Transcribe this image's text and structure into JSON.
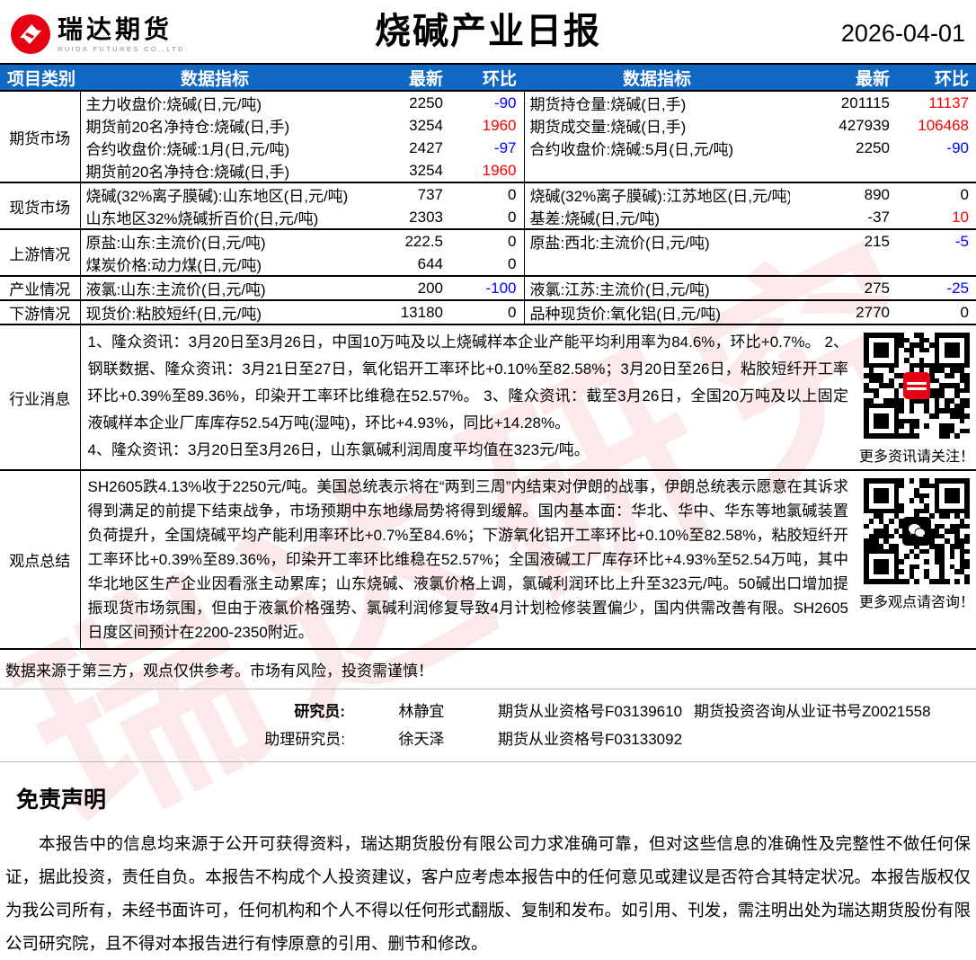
{
  "colors": {
    "header_blue": "#1167c4",
    "pos": "#ff0000",
    "neg": "#0000ff",
    "brand_red": "#e60012"
  },
  "header": {
    "brand": "瑞达期货",
    "brand_sub": "RUIDA FUTURES CO.,LTD.",
    "title": "烧碱产业日报",
    "date": "2026-04-01"
  },
  "table": {
    "columns": {
      "category": "项目类别",
      "indicator": "数据指标",
      "latest": "最新",
      "change": "环比"
    },
    "sections": [
      {
        "category": "期货市场",
        "rows": [
          {
            "l_ind": "主力收盘价:烧碱(日,元/吨)",
            "l_val": "2250",
            "l_chg": "-90",
            "r_ind": "期货持仓量:烧碱(日,手)",
            "r_val": "201115",
            "r_chg": "11137"
          },
          {
            "l_ind": "期货前20名净持仓:烧碱(日,手)",
            "l_val": "3254",
            "l_chg": "1960",
            "r_ind": "期货成交量:烧碱(日,手)",
            "r_val": "427939",
            "r_chg": "106468"
          },
          {
            "l_ind": "合约收盘价:烧碱:1月(日,元/吨)",
            "l_val": "2427",
            "l_chg": "-97",
            "r_ind": "合约收盘价:烧碱:5月(日,元/吨)",
            "r_val": "2250",
            "r_chg": "-90"
          },
          {
            "l_ind": "期货前20名净持仓:烧碱(日,手)",
            "l_val": "3254",
            "l_chg": "1960",
            "r_ind": "",
            "r_val": "",
            "r_chg": ""
          }
        ]
      },
      {
        "category": "现货市场",
        "rows": [
          {
            "l_ind": "烧碱(32%离子膜碱):山东地区(日,元/吨)",
            "l_val": "737",
            "l_chg": "0",
            "r_ind": "烧碱(32%离子膜碱):江苏地区(日,元/吨)",
            "r_val": "890",
            "r_chg": "0"
          },
          {
            "l_ind": "山东地区32%烧碱折百价(日,元/吨)",
            "l_val": "2303",
            "l_chg": "0",
            "r_ind": "基差:烧碱(日,元/吨)",
            "r_val": "-37",
            "r_chg": "10"
          }
        ]
      },
      {
        "category": "上游情况",
        "rows": [
          {
            "l_ind": "原盐:山东:主流价(日,元/吨)",
            "l_val": "222.5",
            "l_chg": "0",
            "r_ind": "原盐:西北:主流价(日,元/吨)",
            "r_val": "215",
            "r_chg": "-5"
          },
          {
            "l_ind": "煤炭价格:动力煤(日,元/吨)",
            "l_val": "644",
            "l_chg": "0",
            "r_ind": "",
            "r_val": "",
            "r_chg": ""
          }
        ]
      },
      {
        "category": "产业情况",
        "rows": [
          {
            "l_ind": "液氯:山东:主流价(日,元/吨)",
            "l_val": "200",
            "l_chg": "-100",
            "r_ind": "液氯:江苏:主流价(日,元/吨)",
            "r_val": "275",
            "r_chg": "-25"
          }
        ]
      },
      {
        "category": "下游情况",
        "rows": [
          {
            "l_ind": "现货价:粘胶短纤(日,元/吨)",
            "l_val": "13180",
            "l_chg": "0",
            "r_ind": "品种现货价:氧化铝(日,元/吨)",
            "r_val": "2770",
            "r_chg": "0"
          }
        ]
      }
    ],
    "news": {
      "category": "行业消息",
      "text": "1、隆众资讯：3月20日至3月26日，中国10万吨及以上烧碱样本企业产能平均利用率为84.6%，环比+0.7%。 2、钢联数据、隆众资讯：3月21日至27日，氧化铝开工率环比+0.10%至82.58%；3月20日至26日，粘胶短纤开工率环比+0.39%至89.36%，印染开工率环比维稳在52.57%。 3、隆众资讯：截至3月26日，全国20万吨及以上固定液碱样本企业厂库库存52.54万吨(湿吨)，环比+4.93%，同比+14.28%。\n4、隆众资讯：3月20日至3月26日，山东氯碱利润周度平均值在323元/吨。",
      "qr_caption": "更多资讯请关注！"
    },
    "summary": {
      "category": "观点总结",
      "text": "SH2605跌4.13%收于2250元/吨。美国总统表示将在“两到三周”内结束对伊朗的战事，伊朗总统表示愿意在其诉求得到满足的前提下结束战争，市场预期中东地缘局势将得到缓解。国内基本面：华北、华中、华东等地氯碱装置负荷提升，全国烧碱平均产能利用率环比+0.7%至84.6%；下游氧化铝开工率环比+0.10%至82.58%，粘胶短纤开工率环比+0.39%至89.36%，印染开工率环比维稳在52.57%；全国液碱工厂库存环比+4.93%至52.54万吨，其中华北地区生产企业因看涨主动累库；山东烧碱、液氯价格上调，氯碱利润环比上升至323元/吨。50碱出口增加提振现货市场氛围，但由于液氯价格强势、氯碱利润修复导致4月计划检修装置偏少，国内供需改善有限。SH2605日度区间预计在2200-2350附近。",
      "qr_caption": "更多观点请咨询！"
    }
  },
  "footer": {
    "source_line": "数据来源于第三方，观点仅供参考。市场有风险，投资需谨慎！",
    "researchers": [
      {
        "role": "研究员:",
        "name": "林静宜",
        "cert1": "期货从业资格号F03139610",
        "cert2": "期货投资咨询从业证书号Z0021558"
      },
      {
        "role": "助理研究员:",
        "name": "徐天泽",
        "cert1": "期货从业资格号F03133092",
        "cert2": ""
      }
    ]
  },
  "legal": {
    "heading": "免责声明",
    "body": "本报告中的信息均来源于公开可获得资料，瑞达期货股份有限公司力求准确可靠，但对这些信息的准确性及完整性不做任何保证，据此投资，责任自负。本报告不构成个人投资建议，客户应考虑本报告中的任何意见或建议是否符合其特定状况。本报告版权仅为我公司所有，未经书面许可，任何机构和个人不得以任何形式翻版、复制和发布。如引用、刊发，需注明出处为瑞达期货股份有限公司研究院，且不得对本报告进行有悖原意的引用、删节和修改。"
  },
  "watermark": "瑞达研究"
}
